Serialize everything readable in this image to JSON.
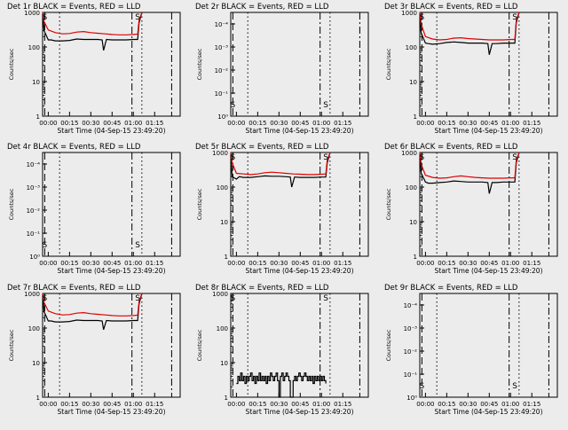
{
  "chart_data": {
    "type": "line",
    "xlabel": "Start Time (04-Sep-15 23:49:20)",
    "xticks": [
      "00:00",
      "00:15",
      "00:30",
      "00:45",
      "01:00",
      "01:15"
    ],
    "xlim_minutes": [
      -4,
      93
    ],
    "colors": {
      "events": "#000000",
      "lld": "#dd0000",
      "background": "#ececec"
    },
    "panels": [
      {
        "title": "Det 1r BLACK = Events, RED = LLD",
        "ylabel": "Counts/sec",
        "yscale": "log",
        "ylim": [
          1,
          1000
        ],
        "yticks": [
          "1",
          "10",
          "100",
          "1000"
        ],
        "has_data": true,
        "markers": [
          "S",
          "S"
        ],
        "series": [
          {
            "name": "BLACK = Events",
            "x": [
              -4,
              -3,
              0,
              2,
              5,
              10,
              15,
              20,
              25,
              30,
              35,
              38,
              39,
              41,
              45,
              50,
              55,
              60,
              63,
              64,
              66
            ],
            "y": [
              900,
              300,
              160,
              160,
              150,
              150,
              155,
              170,
              165,
              165,
              165,
              160,
              80,
              165,
              160,
              160,
              160,
              165,
              165,
              500,
              1000
            ]
          },
          {
            "name": "RED = LLD",
            "x": [
              -4,
              -3,
              0,
              5,
              10,
              15,
              20,
              25,
              30,
              35,
              40,
              45,
              50,
              55,
              60,
              63,
              64,
              66
            ],
            "y": [
              1000,
              550,
              310,
              260,
              240,
              245,
              270,
              280,
              260,
              250,
              240,
              230,
              225,
              225,
              230,
              235,
              600,
              1000
            ]
          }
        ]
      },
      {
        "title": "Det 2r BLACK = Events, RED = LLD",
        "ylabel": "Counts/sec",
        "yscale": "log",
        "ylim": [
          1,
          1000
        ],
        "yticks": [
          "10⁰",
          "10⁻¹",
          "10⁻²",
          "10⁻³",
          "10⁻⁴"
        ],
        "has_data": false,
        "markers": [
          "S",
          "S"
        ],
        "series": []
      },
      {
        "title": "Det 3r BLACK = Events, RED = LLD",
        "ylabel": "Counts/sec",
        "yscale": "log",
        "ylim": [
          1,
          1000
        ],
        "yticks": [
          "1",
          "10",
          "100",
          "1000"
        ],
        "has_data": true,
        "markers": [
          "S",
          "S"
        ],
        "series": [
          {
            "name": "BLACK = Events",
            "x": [
              -4,
              -3,
              0,
              2,
              5,
              10,
              15,
              20,
              25,
              30,
              35,
              40,
              44,
              45,
              47,
              50,
              55,
              60,
              63,
              64,
              66
            ],
            "y": [
              900,
              250,
              130,
              125,
              120,
              125,
              135,
              140,
              135,
              130,
              130,
              130,
              125,
              60,
              125,
              125,
              130,
              130,
              130,
              500,
              1000
            ]
          },
          {
            "name": "RED = LLD",
            "x": [
              -4,
              -3,
              0,
              5,
              10,
              15,
              20,
              25,
              30,
              35,
              40,
              45,
              50,
              55,
              60,
              63,
              64,
              66
            ],
            "y": [
              1000,
              450,
              200,
              170,
              160,
              165,
              180,
              185,
              175,
              170,
              165,
              160,
              160,
              160,
              165,
              165,
              600,
              1000
            ]
          }
        ]
      },
      {
        "title": "Det 4r BLACK = Events, RED = LLD",
        "ylabel": "Counts/sec",
        "yscale": "log",
        "ylim": [
          1,
          1000
        ],
        "yticks": [
          "10⁰",
          "10⁻¹",
          "10⁻²",
          "10⁻³",
          "10⁻⁴"
        ],
        "has_data": false,
        "markers": [
          "S",
          "S"
        ],
        "series": []
      },
      {
        "title": "Det 5r BLACK = Events, RED = LLD",
        "ylabel": "Counts/sec",
        "yscale": "log",
        "ylim": [
          1,
          1000
        ],
        "yticks": [
          "1",
          "10",
          "100",
          "1000"
        ],
        "has_data": true,
        "markers": [
          "S",
          "S"
        ],
        "series": [
          {
            "name": "BLACK = Events",
            "x": [
              -4,
              -3,
              0,
              2,
              5,
              10,
              15,
              20,
              25,
              30,
              35,
              38,
              39,
              41,
              45,
              50,
              55,
              60,
              63,
              64,
              66
            ],
            "y": [
              800,
              200,
              170,
              200,
              190,
              190,
              200,
              210,
              205,
              205,
              200,
              195,
              100,
              195,
              190,
              190,
              190,
              195,
              195,
              500,
              1000
            ]
          },
          {
            "name": "RED = LLD",
            "x": [
              -4,
              -3,
              0,
              5,
              10,
              15,
              20,
              25,
              30,
              35,
              40,
              45,
              50,
              55,
              60,
              63,
              64,
              66
            ],
            "y": [
              1000,
              500,
              250,
              240,
              230,
              240,
              260,
              270,
              260,
              250,
              240,
              235,
              230,
              230,
              235,
              240,
              600,
              1000
            ]
          }
        ]
      },
      {
        "title": "Det 6r BLACK = Events, RED = LLD",
        "ylabel": "Counts/sec",
        "yscale": "log",
        "ylim": [
          1,
          1000
        ],
        "yticks": [
          "1",
          "10",
          "100",
          "1000"
        ],
        "has_data": true,
        "markers": [
          "S",
          "S"
        ],
        "series": [
          {
            "name": "BLACK = Events",
            "x": [
              -4,
              -3,
              0,
              2,
              5,
              10,
              15,
              20,
              25,
              30,
              35,
              40,
              44,
              45,
              47,
              50,
              55,
              60,
              63,
              64,
              66
            ],
            "y": [
              900,
              250,
              140,
              130,
              130,
              135,
              140,
              150,
              145,
              140,
              140,
              140,
              135,
              65,
              135,
              135,
              140,
              140,
              140,
              500,
              1000
            ]
          },
          {
            "name": "RED = LLD",
            "x": [
              -4,
              -3,
              0,
              5,
              10,
              15,
              20,
              25,
              30,
              35,
              40,
              45,
              50,
              55,
              60,
              63,
              64,
              66
            ],
            "y": [
              1000,
              450,
              220,
              190,
              180,
              185,
              200,
              210,
              200,
              190,
              185,
              180,
              180,
              180,
              185,
              185,
              600,
              1000
            ]
          }
        ]
      },
      {
        "title": "Det 7r BLACK = Events, RED = LLD",
        "ylabel": "Counts/sec",
        "yscale": "log",
        "ylim": [
          1,
          1000
        ],
        "yticks": [
          "1",
          "10",
          "100",
          "1000"
        ],
        "has_data": true,
        "markers": [
          "S",
          "S"
        ],
        "series": [
          {
            "name": "BLACK = Events",
            "x": [
              -4,
              -3,
              0,
              2,
              5,
              10,
              15,
              20,
              25,
              30,
              35,
              38,
              39,
              41,
              45,
              50,
              55,
              60,
              63,
              64,
              66
            ],
            "y": [
              900,
              300,
              160,
              160,
              150,
              150,
              155,
              170,
              165,
              165,
              165,
              160,
              90,
              165,
              160,
              160,
              160,
              165,
              165,
              500,
              1000
            ]
          },
          {
            "name": "RED = LLD",
            "x": [
              -4,
              -3,
              0,
              5,
              10,
              15,
              20,
              25,
              30,
              35,
              40,
              45,
              50,
              55,
              60,
              63,
              64,
              66
            ],
            "y": [
              1000,
              550,
              310,
              260,
              240,
              245,
              270,
              280,
              260,
              250,
              240,
              230,
              225,
              225,
              230,
              235,
              600,
              1000
            ]
          }
        ]
      },
      {
        "title": "Det 8r BLACK = Events, RED = LLD",
        "ylabel": "Counts/sec",
        "yscale": "log",
        "ylim": [
          1,
          1000
        ],
        "yticks": [
          "1",
          "10",
          "100",
          "1000"
        ],
        "has_data": true,
        "markers": [
          "S",
          "S"
        ],
        "series": [
          {
            "name": "BLACK = Events",
            "x": [
              0,
              1,
              2,
              3,
              4,
              5,
              6,
              7,
              8,
              9,
              10,
              11,
              12,
              13,
              14,
              15,
              16,
              17,
              18,
              19,
              20,
              21,
              22,
              23,
              24,
              25,
              26,
              27,
              28,
              29,
              30,
              31,
              32,
              33,
              34,
              35,
              36,
              37,
              38,
              39,
              40,
              41,
              42,
              43,
              44,
              45,
              46,
              47,
              48,
              49,
              50,
              51,
              52,
              53,
              54,
              55,
              56,
              57,
              58,
              59,
              60,
              61,
              62,
              63
            ],
            "y": [
              2.5,
              4,
              3,
              5,
              3,
              4,
              2.5,
              4,
              3,
              4,
              5,
              3,
              4,
              2.5,
              4,
              3,
              5,
              3,
              4,
              3,
              4,
              2.5,
              4,
              3,
              5,
              4,
              3,
              4,
              5,
              3,
              1,
              4,
              5,
              3,
              4,
              5,
              4,
              3,
              1,
              1,
              3,
              4,
              3,
              4,
              5,
              4,
              3,
              4,
              5,
              4,
              3,
              4,
              3,
              4,
              2.5,
              4,
              3,
              4,
              3,
              4,
              3,
              4,
              3,
              2.5
            ]
          }
        ]
      },
      {
        "title": "Det 9r BLACK = Events, RED = LLD",
        "ylabel": "Counts/sec",
        "yscale": "log",
        "ylim": [
          1,
          1000
        ],
        "yticks": [
          "10⁰",
          "10⁻¹",
          "10⁻²",
          "10⁻³",
          "10⁻⁴"
        ],
        "has_data": false,
        "markers": [
          "S",
          "S"
        ],
        "series": []
      }
    ]
  }
}
